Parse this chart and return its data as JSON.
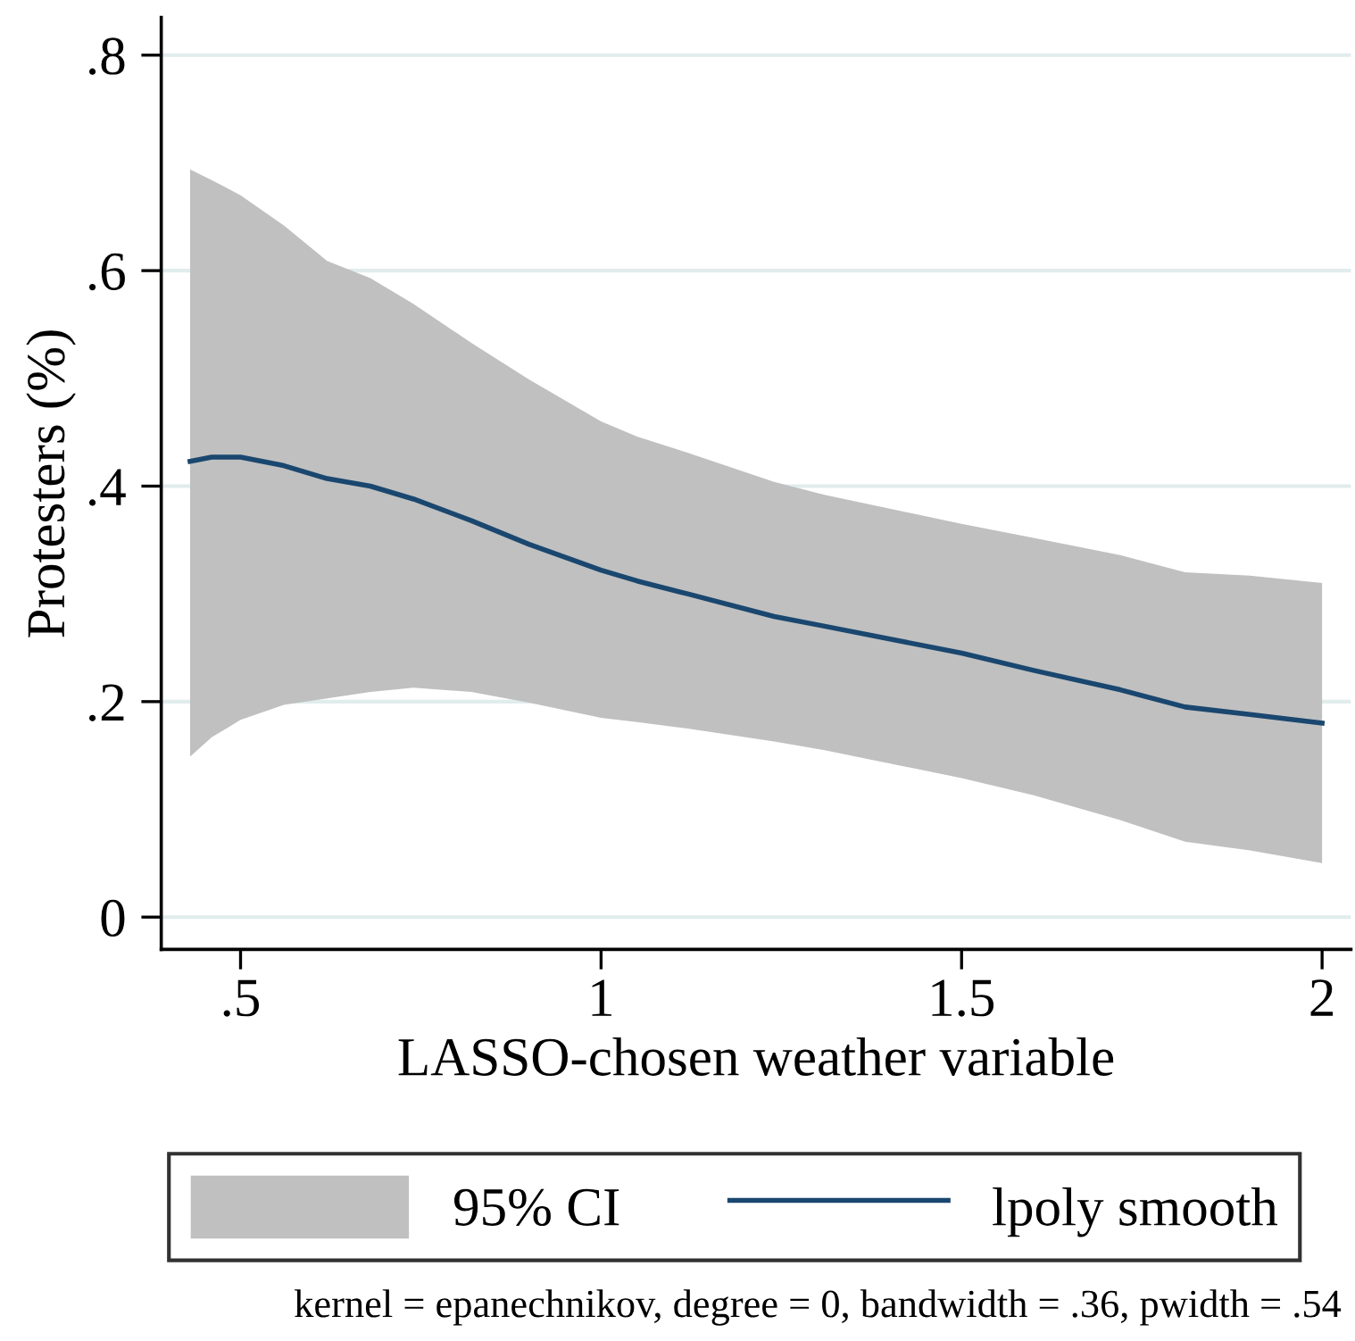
{
  "chart_data": {
    "type": "line",
    "xlabel": "LASSO-chosen weather variable",
    "ylabel": "Protesters (%)",
    "x": [
      0.43,
      0.46,
      0.5,
      0.56,
      0.62,
      0.68,
      0.74,
      0.82,
      0.9,
      1.0,
      1.05,
      1.12,
      1.24,
      1.31,
      1.5,
      1.6,
      1.72,
      1.81,
      1.9,
      2.0
    ],
    "series": [
      {
        "name": "lpoly smooth",
        "color": "#1a476f",
        "values": [
          0.423,
          0.427,
          0.427,
          0.419,
          0.407,
          0.4,
          0.388,
          0.368,
          0.346,
          0.322,
          0.312,
          0.3,
          0.279,
          0.27,
          0.245,
          0.229,
          0.211,
          0.195,
          0.188,
          0.18
        ],
        "lower": [
          0.149,
          0.167,
          0.183,
          0.197,
          0.203,
          0.209,
          0.213,
          0.209,
          0.199,
          0.185,
          0.181,
          0.175,
          0.163,
          0.155,
          0.129,
          0.113,
          0.09,
          0.07,
          0.062,
          0.05
        ],
        "upper": [
          0.694,
          0.684,
          0.67,
          0.642,
          0.609,
          0.593,
          0.569,
          0.533,
          0.499,
          0.46,
          0.446,
          0.431,
          0.404,
          0.392,
          0.365,
          0.352,
          0.336,
          0.32,
          0.317,
          0.31
        ]
      }
    ],
    "xlim": [
      0.39,
      2.04
    ],
    "ylim": [
      -0.03,
      0.835
    ],
    "xticks": [
      {
        "value": 0.5,
        "label": ".5"
      },
      1,
      1.5,
      2
    ],
    "yticks": [
      0,
      {
        "value": 0.2,
        "label": ".2"
      },
      {
        "value": 0.4,
        "label": ".4"
      },
      {
        "value": 0.6,
        "label": ".6"
      },
      {
        "value": 0.8,
        "label": ".8"
      }
    ],
    "grid": "y",
    "legend": "bottom",
    "line_style": "solid",
    "marker": "none",
    "annotations": [
      "95% CI",
      "kernel = epanechnikov, degree = 0, bandwidth = .36, pwidth = .54"
    ]
  }
}
